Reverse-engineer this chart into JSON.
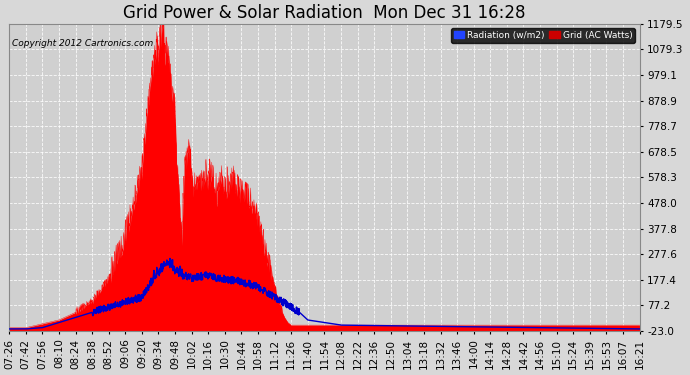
{
  "title": "Grid Power & Solar Radiation  Mon Dec 31 16:28",
  "copyright": "Copyright 2012 Cartronics.com",
  "legend_radiation": "Radiation (w/m2)",
  "legend_grid": "Grid (AC Watts)",
  "yticks": [
    -23.0,
    77.2,
    177.4,
    277.6,
    377.8,
    478.0,
    578.3,
    678.5,
    778.7,
    878.9,
    979.1,
    1079.3,
    1179.5
  ],
  "ylim": [
    -23.0,
    1179.5
  ],
  "bg_color": "#d8d8d8",
  "plot_bg_color": "#d0d0d0",
  "grid_color": "#ffffff",
  "fill_color": "#ff0000",
  "line_color": "#0000cc",
  "title_fontsize": 12,
  "tick_fontsize": 7.5,
  "xtick_labels": [
    "07:26",
    "07:42",
    "07:56",
    "08:10",
    "08:24",
    "08:38",
    "08:52",
    "09:06",
    "09:20",
    "09:34",
    "09:48",
    "10:02",
    "10:16",
    "10:30",
    "10:44",
    "10:58",
    "11:12",
    "11:26",
    "11:40",
    "11:54",
    "12:08",
    "12:22",
    "12:36",
    "12:50",
    "13:04",
    "13:18",
    "13:32",
    "13:46",
    "14:00",
    "14:14",
    "14:28",
    "14:42",
    "14:56",
    "15:10",
    "15:24",
    "15:39",
    "15:53",
    "16:07",
    "16:21"
  ],
  "radiation_keypoints": [
    [
      0,
      -10
    ],
    [
      1,
      -10
    ],
    [
      2,
      5
    ],
    [
      3,
      20
    ],
    [
      4,
      50
    ],
    [
      5,
      90
    ],
    [
      6,
      180
    ],
    [
      7,
      350
    ],
    [
      8,
      600
    ],
    [
      8.3,
      820
    ],
    [
      8.6,
      980
    ],
    [
      8.9,
      1100
    ],
    [
      9.0,
      1050
    ],
    [
      9.1,
      1150
    ],
    [
      9.2,
      1179
    ],
    [
      9.3,
      1160
    ],
    [
      9.4,
      1050
    ],
    [
      9.5,
      1100
    ],
    [
      9.6,
      1080
    ],
    [
      9.7,
      980
    ],
    [
      9.8,
      900
    ],
    [
      9.9,
      870
    ],
    [
      10.0,
      850
    ],
    [
      10.1,
      600
    ],
    [
      10.2,
      580
    ],
    [
      10.3,
      400
    ],
    [
      10.4,
      350
    ],
    [
      10.5,
      500
    ],
    [
      10.6,
      620
    ],
    [
      10.7,
      650
    ],
    [
      10.8,
      680
    ],
    [
      10.9,
      660
    ],
    [
      11.0,
      580
    ],
    [
      11.1,
      540
    ],
    [
      11.2,
      530
    ],
    [
      11.5,
      540
    ],
    [
      11.8,
      560
    ],
    [
      12.0,
      550
    ],
    [
      12.2,
      580
    ],
    [
      12.4,
      520
    ],
    [
      12.5,
      500
    ],
    [
      12.6,
      540
    ],
    [
      12.8,
      560
    ],
    [
      13.0,
      540
    ],
    [
      13.2,
      530
    ],
    [
      13.4,
      550
    ],
    [
      13.5,
      570
    ],
    [
      13.6,
      550
    ],
    [
      13.8,
      530
    ],
    [
      14.0,
      510
    ],
    [
      14.2,
      520
    ],
    [
      14.4,
      500
    ],
    [
      14.6,
      480
    ],
    [
      14.8,
      460
    ],
    [
      15.0,
      400
    ],
    [
      15.2,
      350
    ],
    [
      15.4,
      300
    ],
    [
      15.6,
      250
    ],
    [
      15.8,
      200
    ],
    [
      16.0,
      150
    ],
    [
      16.2,
      100
    ],
    [
      16.4,
      60
    ],
    [
      16.6,
      30
    ],
    [
      16.8,
      10
    ],
    [
      17.0,
      0
    ],
    [
      18.0,
      0
    ],
    [
      38,
      0
    ]
  ],
  "grid_keypoints": [
    [
      0,
      -15
    ],
    [
      1,
      -15
    ],
    [
      2,
      -10
    ],
    [
      3,
      10
    ],
    [
      4,
      30
    ],
    [
      5,
      50
    ],
    [
      6,
      70
    ],
    [
      7,
      90
    ],
    [
      8,
      110
    ],
    [
      9,
      210
    ],
    [
      9.5,
      240
    ],
    [
      10,
      220
    ],
    [
      10.5,
      195
    ],
    [
      11,
      185
    ],
    [
      11.5,
      190
    ],
    [
      12,
      195
    ],
    [
      12.5,
      185
    ],
    [
      13,
      180
    ],
    [
      13.5,
      175
    ],
    [
      14,
      170
    ],
    [
      14.5,
      160
    ],
    [
      15,
      150
    ],
    [
      15.5,
      130
    ],
    [
      16,
      110
    ],
    [
      16.5,
      90
    ],
    [
      17,
      70
    ],
    [
      17.5,
      50
    ],
    [
      18,
      20
    ],
    [
      19,
      10
    ],
    [
      20,
      0
    ],
    [
      38,
      -15
    ]
  ]
}
